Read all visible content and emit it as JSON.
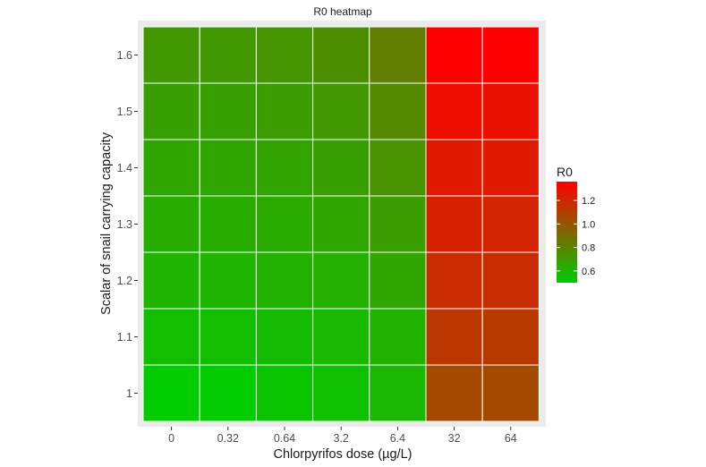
{
  "chart_data": {
    "type": "heatmap",
    "title": "R0 heatmap",
    "xlabel": "Chlorpyrifos dose (µg/L)",
    "ylabel": "Scalar of snail carrying capacity",
    "x_categories": [
      "0",
      "0.32",
      "0.64",
      "3.2",
      "6.4",
      "32",
      "64"
    ],
    "y_categories": [
      "1",
      "1.1",
      "1.2",
      "1.3",
      "1.4",
      "1.5",
      "1.6"
    ],
    "values": [
      [
        0.5,
        0.5,
        0.53,
        0.55,
        0.58,
        1.05,
        1.05
      ],
      [
        0.56,
        0.56,
        0.57,
        0.58,
        0.61,
        1.13,
        1.12
      ],
      [
        0.6,
        0.6,
        0.61,
        0.62,
        0.66,
        1.18,
        1.17
      ],
      [
        0.63,
        0.63,
        0.64,
        0.66,
        0.7,
        1.22,
        1.21
      ],
      [
        0.66,
        0.66,
        0.67,
        0.69,
        0.74,
        1.26,
        1.25
      ],
      [
        0.69,
        0.69,
        0.7,
        0.72,
        0.78,
        1.3,
        1.29
      ],
      [
        0.72,
        0.72,
        0.73,
        0.76,
        0.83,
        1.36,
        1.36
      ]
    ],
    "legend": {
      "title": "R0",
      "position": "right",
      "min": 0.5,
      "max": 1.36,
      "ticks": [
        0.6,
        0.8,
        1.0,
        1.2
      ],
      "tick_labels": [
        "0.6",
        "0.8",
        "1.0",
        "1.2"
      ],
      "low_color": "#00cc00",
      "high_color": "#ff0000"
    },
    "panel_background": "#ebebeb",
    "grid": false
  }
}
